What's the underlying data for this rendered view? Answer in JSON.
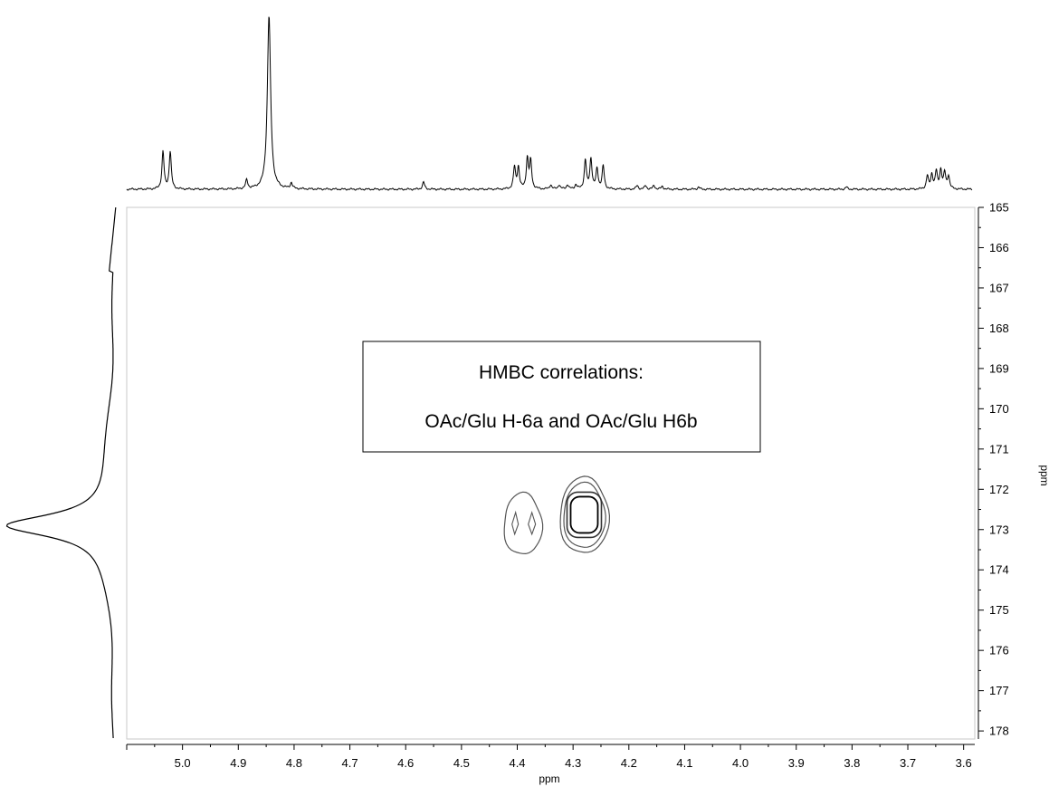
{
  "chart_data": {
    "type": "contour",
    "x_axis": {
      "label": "ppm",
      "range": [
        5.1,
        3.58
      ],
      "reversed": true,
      "ticks": [
        "5.0",
        "4.9",
        "4.8",
        "4.7",
        "4.6",
        "4.5",
        "4.4",
        "4.3",
        "4.2",
        "4.1",
        "4.0",
        "3.9",
        "3.8",
        "3.7",
        "3.6"
      ]
    },
    "y_axis": {
      "label": "ppm",
      "range": [
        165,
        178.2
      ],
      "reversed": true,
      "position": "right",
      "ticks": [
        "165",
        "166",
        "167",
        "168",
        "169",
        "170",
        "171",
        "172",
        "173",
        "174",
        "175",
        "176",
        "177",
        "178"
      ]
    },
    "annotation": {
      "lines": [
        "HMBC correlations:",
        "OAc/Glu H-6a and OAc/Glu H6b"
      ]
    },
    "cross_peaks": [
      {
        "x": 4.39,
        "y": 172.8,
        "levels": 2
      },
      {
        "x": 4.28,
        "y": 172.7,
        "levels": 4
      }
    ],
    "top_projection": {
      "peaks": [
        {
          "x": 5.035,
          "h": 0.26
        },
        {
          "x": 5.022,
          "h": 0.26
        },
        {
          "x": 4.885,
          "h": 0.06
        },
        {
          "x": 4.845,
          "h": 1.2
        },
        {
          "x": 4.805,
          "h": 0.04
        },
        {
          "x": 4.568,
          "h": 0.05
        },
        {
          "x": 4.405,
          "h": 0.15
        },
        {
          "x": 4.398,
          "h": 0.15
        },
        {
          "x": 4.382,
          "h": 0.21
        },
        {
          "x": 4.376,
          "h": 0.19
        },
        {
          "x": 4.34,
          "h": 0.03
        },
        {
          "x": 4.325,
          "h": 0.03
        },
        {
          "x": 4.31,
          "h": 0.03
        },
        {
          "x": 4.295,
          "h": 0.03
        },
        {
          "x": 4.278,
          "h": 0.2
        },
        {
          "x": 4.268,
          "h": 0.21
        },
        {
          "x": 4.257,
          "h": 0.14
        },
        {
          "x": 4.246,
          "h": 0.16
        },
        {
          "x": 4.185,
          "h": 0.025
        },
        {
          "x": 4.17,
          "h": 0.025
        },
        {
          "x": 4.155,
          "h": 0.025
        },
        {
          "x": 4.14,
          "h": 0.02
        },
        {
          "x": 4.075,
          "h": 0.015
        },
        {
          "x": 3.81,
          "h": 0.015
        },
        {
          "x": 3.665,
          "h": 0.09
        },
        {
          "x": 3.657,
          "h": 0.1
        },
        {
          "x": 3.649,
          "h": 0.12
        },
        {
          "x": 3.641,
          "h": 0.13
        },
        {
          "x": 3.634,
          "h": 0.11
        },
        {
          "x": 3.627,
          "h": 0.09
        }
      ]
    },
    "left_projection": {
      "peak": {
        "y": 172.9,
        "h": 1.0
      }
    }
  }
}
